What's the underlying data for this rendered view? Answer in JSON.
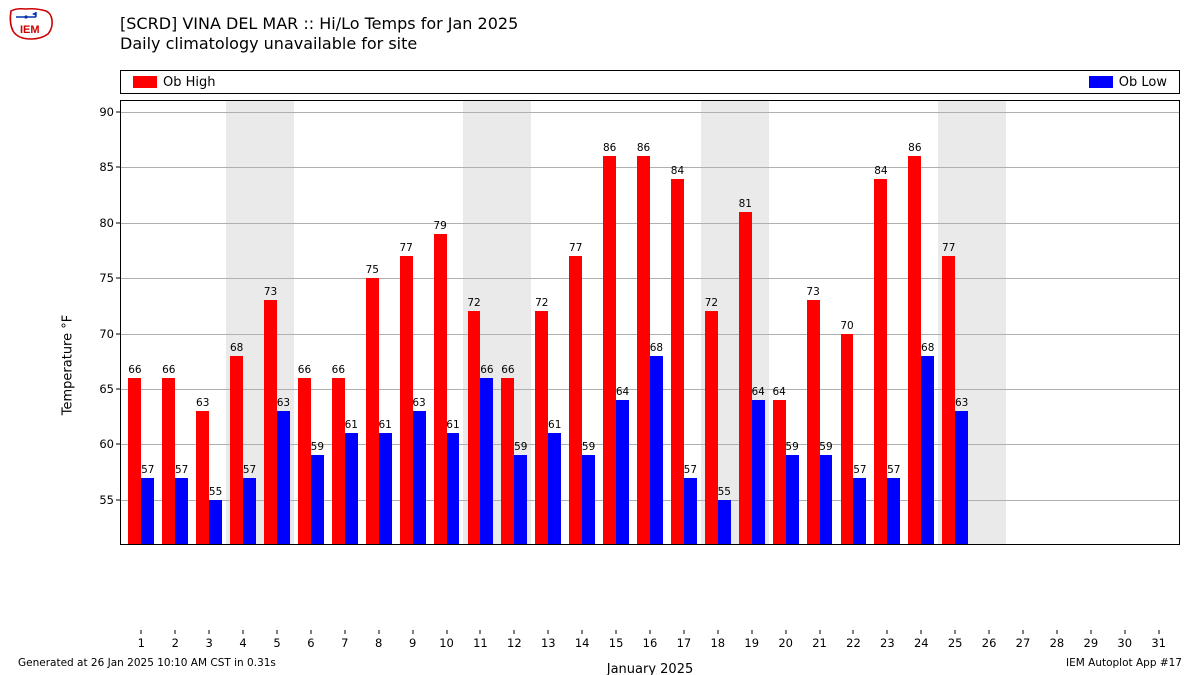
{
  "title_line1": "[SCRD] VINA DEL MAR :: Hi/Lo Temps for Jan 2025",
  "title_line2": "Daily climatology unavailable for site",
  "footer_left": "Generated at 26 Jan 2025 10:10 AM CST in 0.31s",
  "footer_right": "IEM Autoplot App #17",
  "logo_text": "IEM",
  "legend": {
    "high": "Ob High",
    "low": "Ob Low"
  },
  "ylabel": "Temperature °F",
  "xlabel": "January 2025",
  "colors": {
    "high": "#ff0000",
    "low": "#0000ff",
    "grid": "#b0b0b0",
    "weekend": "#eaeaea",
    "axis": "#000000",
    "bg": "#ffffff"
  },
  "y": {
    "min": 51,
    "max": 91,
    "ticks": [
      55,
      60,
      65,
      70,
      75,
      80,
      85,
      90
    ]
  },
  "x": {
    "min": 0.4,
    "max": 31.6,
    "ticks": [
      1,
      2,
      3,
      4,
      5,
      6,
      7,
      8,
      9,
      10,
      11,
      12,
      13,
      14,
      15,
      16,
      17,
      18,
      19,
      20,
      21,
      22,
      23,
      24,
      25,
      26,
      27,
      28,
      29,
      30,
      31
    ]
  },
  "weekend_bands": [
    [
      3.5,
      5.5
    ],
    [
      10.5,
      12.5
    ],
    [
      17.5,
      19.5
    ],
    [
      24.5,
      26.5
    ]
  ],
  "bar_width": 0.38,
  "days": [
    {
      "d": 1,
      "hi": 66,
      "lo": 57
    },
    {
      "d": 2,
      "hi": 66,
      "lo": 57
    },
    {
      "d": 3,
      "hi": 63,
      "lo": 55
    },
    {
      "d": 4,
      "hi": 68,
      "lo": 57
    },
    {
      "d": 5,
      "hi": 73,
      "lo": 63
    },
    {
      "d": 6,
      "hi": 66,
      "lo": 59
    },
    {
      "d": 7,
      "hi": 66,
      "lo": 61
    },
    {
      "d": 8,
      "hi": 75,
      "lo": 61
    },
    {
      "d": 9,
      "hi": 77,
      "lo": 63
    },
    {
      "d": 10,
      "hi": 79,
      "lo": 61
    },
    {
      "d": 11,
      "hi": 72,
      "lo": 66
    },
    {
      "d": 12,
      "hi": 66,
      "lo": 59
    },
    {
      "d": 13,
      "hi": 72,
      "lo": 61
    },
    {
      "d": 14,
      "hi": 77,
      "lo": 59
    },
    {
      "d": 15,
      "hi": 86,
      "lo": 64
    },
    {
      "d": 16,
      "hi": 86,
      "lo": 68
    },
    {
      "d": 17,
      "hi": 84,
      "lo": 57
    },
    {
      "d": 18,
      "hi": 72,
      "lo": 55
    },
    {
      "d": 19,
      "hi": 81,
      "lo": 64
    },
    {
      "d": 20,
      "hi": 64,
      "lo": 59
    },
    {
      "d": 21,
      "hi": 73,
      "lo": 59
    },
    {
      "d": 22,
      "hi": 70,
      "lo": 57
    },
    {
      "d": 23,
      "hi": 84,
      "lo": 57
    },
    {
      "d": 24,
      "hi": 86,
      "lo": 68
    },
    {
      "d": 25,
      "hi": 77,
      "lo": 63
    }
  ]
}
